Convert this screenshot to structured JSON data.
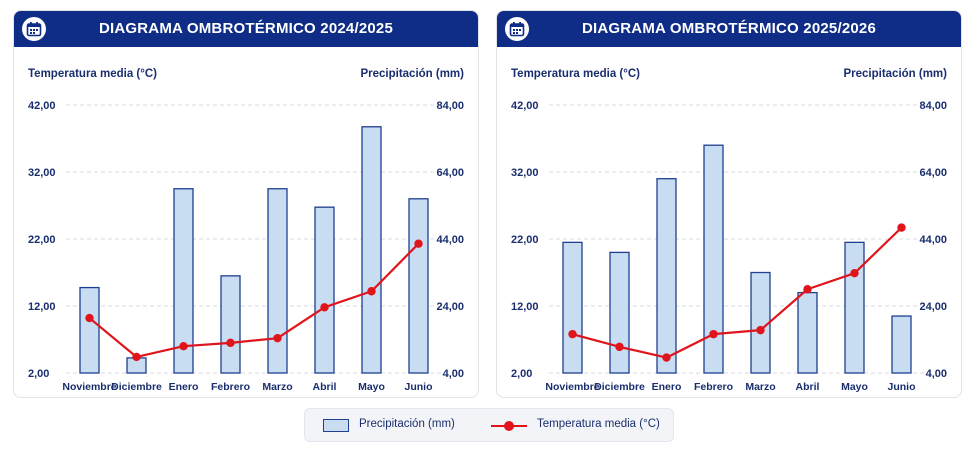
{
  "colors": {
    "header_bg": "#0f2d86",
    "bar_fill": "#c8dcf2",
    "bar_stroke": "#1f3f8f",
    "line": "#e0141b",
    "text_dark": "#1a2e6e"
  },
  "icons": {
    "header": "calendar-icon"
  },
  "legend": {
    "precip_label": "Precipitación (mm)",
    "temp_label": "Temperatura media (°C)"
  },
  "chart_data": [
    {
      "type": "bar",
      "title": "DIAGRAMA OMBROTÉRMICO 2024/2025",
      "left_axis_label": "Temperatura media (°C)",
      "right_axis_label": "Precipitación (mm)",
      "categories": [
        "Noviembre",
        "Diciembre",
        "Enero",
        "Febrero",
        "Marzo",
        "Abril",
        "Mayo",
        "Junio"
      ],
      "left_ticks": [
        "42,00",
        "32,00",
        "22,00",
        "12,00",
        "2,00"
      ],
      "right_ticks": [
        "84,00",
        "64,00",
        "44,00",
        "24,00",
        "4,00"
      ],
      "left_ylim": [
        2,
        42
      ],
      "right_ylim": [
        4,
        84
      ],
      "series": [
        {
          "name": "Precipitación (mm)",
          "kind": "bar",
          "axis": "right",
          "values": [
            29.5,
            8.5,
            59,
            33,
            59,
            53.5,
            77.5,
            56
          ]
        },
        {
          "name": "Temperatura media (°C)",
          "kind": "line",
          "axis": "left",
          "values": [
            10.2,
            4.4,
            6.0,
            6.5,
            7.2,
            11.8,
            14.2,
            21.3
          ]
        }
      ]
    },
    {
      "type": "bar",
      "title": "DIAGRAMA OMBROTÉRMICO 2025/2026",
      "left_axis_label": "Temperatura media (°C)",
      "right_axis_label": "Precipitación (mm)",
      "categories": [
        "Noviembre",
        "Diciembre",
        "Enero",
        "Febrero",
        "Marzo",
        "Abril",
        "Mayo",
        "Junio"
      ],
      "left_ticks": [
        "42,00",
        "32,00",
        "22,00",
        "12,00",
        "2,00"
      ],
      "right_ticks": [
        "84,00",
        "64,00",
        "44,00",
        "24,00",
        "4,00"
      ],
      "left_ylim": [
        2,
        42
      ],
      "right_ylim": [
        4,
        84
      ],
      "series": [
        {
          "name": "Precipitación (mm)",
          "kind": "bar",
          "axis": "right",
          "values": [
            43,
            40,
            62,
            72,
            34,
            28,
            43,
            21
          ]
        },
        {
          "name": "Temperatura media (°C)",
          "kind": "line",
          "axis": "left",
          "values": [
            7.8,
            5.9,
            4.3,
            7.8,
            8.4,
            14.5,
            16.9,
            23.7
          ]
        }
      ]
    }
  ]
}
